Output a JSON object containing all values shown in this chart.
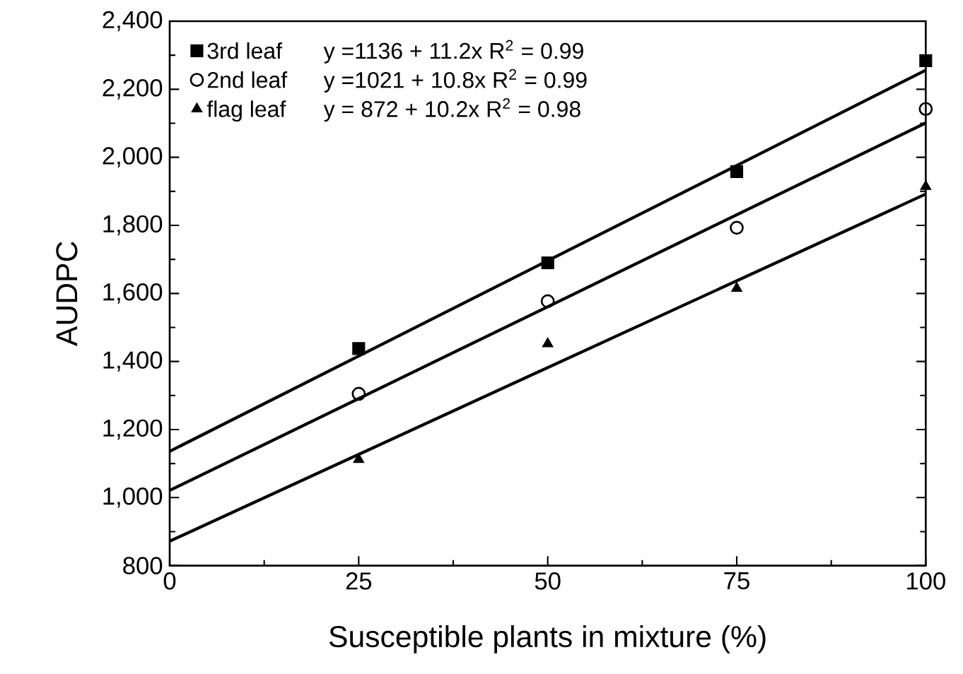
{
  "chart_data": {
    "type": "scatter",
    "xlabel": "Susceptible plants in mixture (%)",
    "ylabel": "AUDPC",
    "xlim": [
      0,
      100
    ],
    "xticks": [
      0,
      25,
      50,
      75,
      100
    ],
    "ylim": [
      800,
      2400
    ],
    "yticks": [
      {
        "value": 800,
        "label": "800"
      },
      {
        "value": 1000,
        "label": "1,000"
      },
      {
        "value": 1200,
        "label": "1,200"
      },
      {
        "value": 1400,
        "label": "1,400"
      },
      {
        "value": 1600,
        "label": "1,600"
      },
      {
        "value": 1800,
        "label": "1,800"
      },
      {
        "value": 2000,
        "label": "2,000"
      },
      {
        "value": 2200,
        "label": "2,200"
      },
      {
        "value": 2400,
        "label": "2,400"
      }
    ],
    "legend": "top left",
    "grid": false,
    "annotations": [
      "y =1136 + 11.2x  R$^{2}$ = 0.99",
      "y =1021 + 10.8x  R$^{2}$ = 0.99",
      "y = 872 + 10.2x  R$^{2}$ = 0.98"
    ],
    "series": [
      {
        "name": "3rd leaf",
        "marker": "square",
        "color": "#000000",
        "x": [
          25,
          50,
          75,
          100
        ],
        "values": [
          1438,
          1690,
          1958,
          2284
        ]
      },
      {
        "name": "2nd leaf",
        "marker": "circle",
        "color": "#000000",
        "x": [
          25,
          50,
          75,
          100
        ],
        "values": [
          1305,
          1577,
          1793,
          2142
        ]
      },
      {
        "name": "flag leaf",
        "marker": "triangle",
        "color": "#000000",
        "x": [
          25,
          50,
          75,
          100
        ],
        "values": [
          1112,
          1452,
          1615,
          1914
        ]
      },
      {
        "type": "line",
        "marker": "none",
        "color": "#000000",
        "x": [
          0,
          100
        ],
        "values": [
          1136,
          2256
        ]
      },
      {
        "type": "line",
        "marker": "none",
        "color": "#000000",
        "x": [
          0,
          100
        ],
        "values": [
          1021,
          2101
        ]
      },
      {
        "type": "line",
        "marker": "none",
        "color": "#000000",
        "x": [
          0,
          100
        ],
        "values": [
          872,
          1892
        ]
      }
    ]
  }
}
